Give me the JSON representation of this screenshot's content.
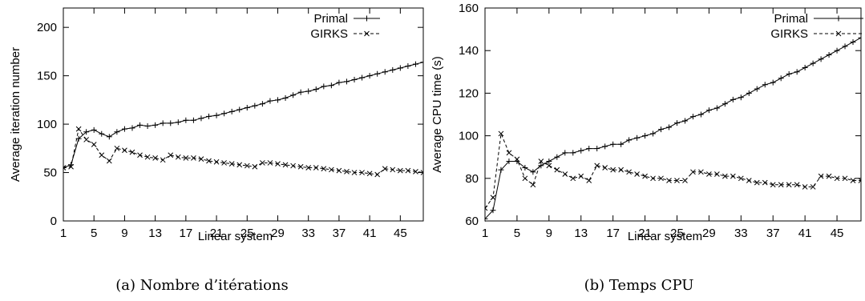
{
  "captions": [
    "(a) Nombre d’itérations",
    "(b) Temps CPU"
  ],
  "chart_data": [
    {
      "type": "line",
      "caption": "(a) Nombre d’itérations",
      "xlabel": "Linear system",
      "ylabel": "Average iteration number",
      "xlim": [
        1,
        48
      ],
      "ylim": [
        0,
        220
      ],
      "xticks": [
        1,
        5,
        9,
        13,
        17,
        21,
        25,
        29,
        33,
        37,
        41,
        45
      ],
      "yticks": [
        0,
        50,
        100,
        150,
        200
      ],
      "legend_position": "top-right",
      "x": [
        1,
        2,
        3,
        4,
        5,
        6,
        7,
        8,
        9,
        10,
        11,
        12,
        13,
        14,
        15,
        16,
        17,
        18,
        19,
        20,
        21,
        22,
        23,
        24,
        25,
        26,
        27,
        28,
        29,
        30,
        31,
        32,
        33,
        34,
        35,
        36,
        37,
        38,
        39,
        40,
        41,
        42,
        43,
        44,
        45,
        46,
        47,
        48
      ],
      "series": [
        {
          "name": "Primal",
          "style": "solid",
          "marker": "+",
          "values": [
            55,
            58,
            85,
            92,
            94,
            90,
            87,
            92,
            95,
            96,
            99,
            98,
            99,
            101,
            101,
            102,
            104,
            104,
            106,
            108,
            109,
            111,
            113,
            115,
            117,
            119,
            121,
            124,
            125,
            127,
            130,
            133,
            134,
            136,
            139,
            140,
            143,
            144,
            146,
            148,
            150,
            152,
            154,
            156,
            158,
            160,
            162,
            164
          ]
        },
        {
          "name": "GIRKS",
          "style": "dashed",
          "marker": "x",
          "values": [
            55,
            56,
            95,
            84,
            79,
            68,
            62,
            75,
            73,
            71,
            68,
            66,
            65,
            63,
            68,
            66,
            65,
            65,
            64,
            62,
            61,
            60,
            59,
            58,
            57,
            56,
            60,
            60,
            59,
            58,
            57,
            56,
            55,
            55,
            54,
            53,
            52,
            51,
            50,
            50,
            49,
            48,
            54,
            53,
            52,
            52,
            51,
            50
          ]
        }
      ]
    },
    {
      "type": "line",
      "caption": "(b) Temps CPU",
      "xlabel": "Linear system",
      "ylabel": "Average CPU time (s)",
      "xlim": [
        1,
        48
      ],
      "ylim": [
        60,
        160
      ],
      "xticks": [
        1,
        5,
        9,
        13,
        17,
        21,
        25,
        29,
        33,
        37,
        41,
        45
      ],
      "yticks": [
        60,
        80,
        100,
        120,
        140,
        160
      ],
      "legend_position": "top-right",
      "x": [
        1,
        2,
        3,
        4,
        5,
        6,
        7,
        8,
        9,
        10,
        11,
        12,
        13,
        14,
        15,
        16,
        17,
        18,
        19,
        20,
        21,
        22,
        23,
        24,
        25,
        26,
        27,
        28,
        29,
        30,
        31,
        32,
        33,
        34,
        35,
        36,
        37,
        38,
        39,
        40,
        41,
        42,
        43,
        44,
        45,
        46,
        47,
        48
      ],
      "series": [
        {
          "name": "Primal",
          "style": "solid",
          "marker": "+",
          "values": [
            61,
            65,
            84,
            88,
            88,
            85,
            83,
            86,
            88,
            90,
            92,
            92,
            93,
            94,
            94,
            95,
            96,
            96,
            98,
            99,
            100,
            101,
            103,
            104,
            106,
            107,
            109,
            110,
            112,
            113,
            115,
            117,
            118,
            120,
            122,
            124,
            125,
            127,
            129,
            130,
            132,
            134,
            136,
            138,
            140,
            142,
            144,
            146
          ]
        },
        {
          "name": "GIRKS",
          "style": "dashed",
          "marker": "x",
          "values": [
            66,
            71,
            101,
            92,
            89,
            80,
            77,
            88,
            86,
            84,
            82,
            80,
            81,
            79,
            86,
            85,
            84,
            84,
            83,
            82,
            81,
            80,
            80,
            79,
            79,
            79,
            83,
            83,
            82,
            82,
            81,
            81,
            80,
            79,
            78,
            78,
            77,
            77,
            77,
            77,
            76,
            76,
            81,
            81,
            80,
            80,
            79,
            79
          ]
        }
      ]
    }
  ]
}
